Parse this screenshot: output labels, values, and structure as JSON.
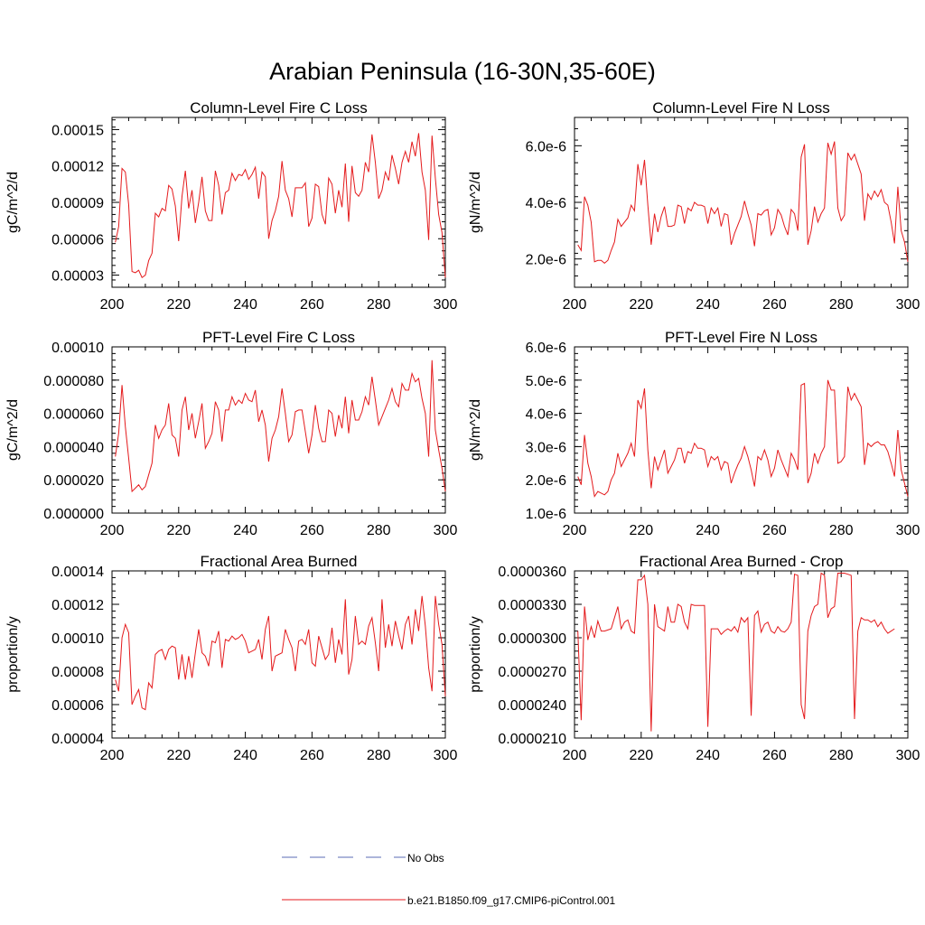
{
  "figure": {
    "title": "Arabian Peninsula (16-30N,35-60E)",
    "line_color": "#e41a1c",
    "obs_color": "#5b6bb5"
  },
  "legend": {
    "obs_label": "No Obs",
    "model_label": "b.e21.B1850.f09_g17.CMIP6-piControl.001"
  },
  "chart_data": [
    {
      "type": "line",
      "title": "Column-Level Fire C Loss",
      "ylabel": "gC/m^2/d",
      "xlim": [
        200,
        300
      ],
      "ylim": [
        2e-05,
        0.00016
      ],
      "xticks": [
        "200",
        "220",
        "240",
        "260",
        "280",
        "300"
      ],
      "yticks": [
        {
          "v": 3e-05,
          "label": "0.00003"
        },
        {
          "v": 6e-05,
          "label": "0.00006"
        },
        {
          "v": 9e-05,
          "label": "0.00009"
        },
        {
          "v": 0.00012,
          "label": "0.00012"
        },
        {
          "v": 0.00015,
          "label": "0.00015"
        }
      ],
      "x_start": 201,
      "values": [
        5.7e-05,
        7e-05,
        0.000118,
        0.000115,
        8.8e-05,
        3.3e-05,
        3.2e-05,
        3.4e-05,
        2.8e-05,
        3e-05,
        4.2e-05,
        4.8e-05,
        8.1e-05,
        7.8e-05,
        8.5e-05,
        8.3e-05,
        0.000104,
        0.000101,
        8.7e-05,
        5.8e-05,
        9.5e-05,
        0.000116,
        8.5e-05,
        0.0001,
        7.3e-05,
        9e-05,
        0.000111,
        8.3e-05,
        7.5e-05,
        7.5e-05,
        0.000116,
        0.000104,
        8e-05,
        9.8e-05,
        0.0001,
        0.000114,
        0.000108,
        0.000113,
        0.000112,
        0.000117,
        0.000109,
        0.000113,
        0.000119,
        9.3e-05,
        0.000115,
        0.000111,
        6e-05,
        7.5e-05,
        8.3e-05,
        9.5e-05,
        0.000124,
        0.0001,
        9.3e-05,
        7.8e-05,
        0.000102,
        0.000102,
        0.000102,
        0.000106,
        7e-05,
        7.7e-05,
        0.000105,
        0.000103,
        8e-05,
        7.2e-05,
        0.00011,
        0.000105,
        8.1e-05,
        0.0001,
        8.6e-05,
        0.000122,
        7.4e-05,
        0.00012,
        9.8e-05,
        9.5e-05,
        0.0001,
        0.000123,
        0.000115,
        0.000146,
        0.000123,
        9.3e-05,
        0.0001,
        0.000115,
        0.000108,
        0.000129,
        0.000118,
        0.000105,
        0.000123,
        0.000132,
        0.000123,
        0.00014,
        0.000128,
        0.000147,
        0.000115,
        0.0001,
        5.9e-05,
        0.000145,
        0.00011,
        8e-05,
        6.5e-05,
        2.8e-05
      ]
    },
    {
      "type": "line",
      "title": "Column-Level Fire N Loss",
      "ylabel": "gN/m^2/d",
      "xlim": [
        200,
        300
      ],
      "ylim": [
        1e-06,
        7e-06
      ],
      "xticks": [
        "200",
        "220",
        "240",
        "260",
        "280",
        "300"
      ],
      "yticks": [
        {
          "v": 2e-06,
          "label": "2.0e-6"
        },
        {
          "v": 4e-06,
          "label": "4.0e-6"
        },
        {
          "v": 6e-06,
          "label": "6.0e-6"
        }
      ],
      "x_start": 201,
      "values": [
        2.5e-06,
        2.3e-06,
        4.2e-06,
        3.9e-06,
        3.3e-06,
        1.9e-06,
        1.95e-06,
        1.95e-06,
        1.85e-06,
        1.95e-06,
        2.3e-06,
        2.6e-06,
        3.4e-06,
        3.15e-06,
        3.3e-06,
        3.45e-06,
        3.9e-06,
        3.7e-06,
        5.35e-06,
        4.6e-06,
        5.5e-06,
        3.9e-06,
        2.5e-06,
        3.6e-06,
        2.95e-06,
        3.5e-06,
        3.85e-06,
        3.15e-06,
        3.15e-06,
        3.2e-06,
        3.9e-06,
        3.85e-06,
        3.25e-06,
        3.8e-06,
        3.7e-06,
        4e-06,
        3.9e-06,
        3.9e-06,
        3.85e-06,
        3.25e-06,
        3.8e-06,
        3.6e-06,
        3.8e-06,
        3.15e-06,
        3.6e-06,
        3.55e-06,
        2.5e-06,
        2.9e-06,
        3.2e-06,
        3.5e-06,
        4.05e-06,
        3.6e-06,
        3.2e-06,
        2.45e-06,
        3.6e-06,
        3.55e-06,
        3.7e-06,
        3.75e-06,
        2.85e-06,
        3.1e-06,
        3.75e-06,
        3.55e-06,
        3.15e-06,
        2.85e-06,
        3.75e-06,
        3.6e-06,
        3e-06,
        5.6e-06,
        6.05e-06,
        2.5e-06,
        3e-06,
        3.85e-06,
        3.3e-06,
        3.6e-06,
        3.8e-06,
        6.1e-06,
        5.7e-06,
        6.15e-06,
        3.8e-06,
        3.35e-06,
        3.55e-06,
        5.75e-06,
        5.5e-06,
        5.7e-06,
        5.35e-06,
        5e-06,
        3.35e-06,
        4.3e-06,
        4.1e-06,
        4.4e-06,
        4.2e-06,
        4.45e-06,
        4e-06,
        3.9e-06,
        3.3e-06,
        2.55e-06,
        4.55e-06,
        3e-06,
        2.6e-06,
        1.9e-06
      ]
    },
    {
      "type": "line",
      "title": "PFT-Level Fire C Loss",
      "ylabel": "gC/m^2/d",
      "xlim": [
        200,
        300
      ],
      "ylim": [
        0,
        0.0001
      ],
      "xticks": [
        "200",
        "220",
        "240",
        "260",
        "280",
        "300"
      ],
      "yticks": [
        {
          "v": 0,
          "label": "0.000000"
        },
        {
          "v": 2e-05,
          "label": "0.000020"
        },
        {
          "v": 4e-05,
          "label": "0.000040"
        },
        {
          "v": 6e-05,
          "label": "0.000060"
        },
        {
          "v": 8e-05,
          "label": "0.000080"
        },
        {
          "v": 0.0001,
          "label": "0.00010"
        }
      ],
      "x_start": 201,
      "values": [
        3.4e-05,
        4.8e-05,
        7.7e-05,
        5.2e-05,
        3.3e-05,
        1.3e-05,
        1.5e-05,
        1.7e-05,
        1.4e-05,
        1.6e-05,
        2.3e-05,
        3e-05,
        5.3e-05,
        4.5e-05,
        5e-05,
        5.3e-05,
        6.6e-05,
        4.7e-05,
        4.5e-05,
        3.4e-05,
        6.2e-05,
        7e-05,
        5e-05,
        6e-05,
        4.5e-05,
        5.5e-05,
        6.6e-05,
        3.9e-05,
        4.3e-05,
        4.8e-05,
        6.7e-05,
        6.2e-05,
        4.3e-05,
        6.2e-05,
        6.2e-05,
        7e-05,
        6.5e-05,
        6.8e-05,
        6.6e-05,
        7.2e-05,
        6.8e-05,
        6.7e-05,
        7.4e-05,
        5.5e-05,
        6.2e-05,
        5.3e-05,
        3.1e-05,
        4.5e-05,
        5e-05,
        5.8e-05,
        7.5e-05,
        6e-05,
        4.3e-05,
        4.7e-05,
        6.1e-05,
        6.2e-05,
        6.2e-05,
        4.9e-05,
        3.6e-05,
        4.7e-05,
        6.5e-05,
        5.1e-05,
        4.3e-05,
        4.3e-05,
        6.2e-05,
        6e-05,
        4.6e-05,
        5.9e-05,
        5.1e-05,
        7e-05,
        4.8e-05,
        6.8e-05,
        5.6e-05,
        5.6e-05,
        6.1e-05,
        7e-05,
        6.5e-05,
        8.2e-05,
        6.8e-05,
        5.3e-05,
        5.8e-05,
        6.3e-05,
        6.8e-05,
        7.5e-05,
        6.7e-05,
        6.4e-05,
        7.8e-05,
        7.4e-05,
        7.4e-05,
        8.4e-05,
        7.9e-05,
        8.1e-05,
        6.9e-05,
        6e-05,
        3.4e-05,
        9.2e-05,
        5e-05,
        3.8e-05,
        2.7e-05,
        1.3e-05
      ]
    },
    {
      "type": "line",
      "title": "PFT-Level Fire N Loss",
      "ylabel": "gN/m^2/d",
      "xlim": [
        200,
        300
      ],
      "ylim": [
        1e-06,
        6e-06
      ],
      "xticks": [
        "200",
        "220",
        "240",
        "260",
        "280",
        "300"
      ],
      "yticks": [
        {
          "v": 1e-06,
          "label": "1.0e-6"
        },
        {
          "v": 2e-06,
          "label": "2.0e-6"
        },
        {
          "v": 3e-06,
          "label": "3.0e-6"
        },
        {
          "v": 4e-06,
          "label": "4.0e-6"
        },
        {
          "v": 5e-06,
          "label": "5.0e-6"
        },
        {
          "v": 6e-06,
          "label": "6.0e-6"
        }
      ],
      "x_start": 201,
      "values": [
        2.1e-06,
        1.85e-06,
        3.35e-06,
        2.5e-06,
        2.1e-06,
        1.5e-06,
        1.65e-06,
        1.6e-06,
        1.55e-06,
        1.65e-06,
        2e-06,
        2.2e-06,
        2.8e-06,
        2.4e-06,
        2.6e-06,
        2.8e-06,
        3.1e-06,
        2.7e-06,
        4.4e-06,
        4.15e-06,
        4.75e-06,
        2.9e-06,
        1.75e-06,
        2.7e-06,
        2.3e-06,
        2.6e-06,
        2.9e-06,
        2.2e-06,
        2.4e-06,
        2.6e-06,
        2.95e-06,
        2.95e-06,
        2.5e-06,
        2.85e-06,
        2.8e-06,
        3.1e-06,
        2.95e-06,
        2.95e-06,
        2.9e-06,
        2.4e-06,
        2.7e-06,
        2.6e-06,
        2.7e-06,
        2.3e-06,
        2.55e-06,
        2.5e-06,
        1.9e-06,
        2.2e-06,
        2.45e-06,
        2.65e-06,
        3e-06,
        2.7e-06,
        2.3e-06,
        1.8e-06,
        2.7e-06,
        2.6e-06,
        2.9e-06,
        2.6e-06,
        2.1e-06,
        2.35e-06,
        2.9e-06,
        2.6e-06,
        2.35e-06,
        2.1e-06,
        2.8e-06,
        2.6e-06,
        2.3e-06,
        4.85e-06,
        4.9e-06,
        1.9e-06,
        2.2e-06,
        2.8e-06,
        2.5e-06,
        2.8e-06,
        3e-06,
        5e-06,
        4.7e-06,
        4.7e-06,
        2.5e-06,
        2.55e-06,
        2.7e-06,
        4.8e-06,
        4.4e-06,
        4.6e-06,
        4.4e-06,
        4.2e-06,
        2.45e-06,
        3.1e-06,
        3e-06,
        3.1e-06,
        3.15e-06,
        3.05e-06,
        3.05e-06,
        2.85e-06,
        2.5e-06,
        2.1e-06,
        3.5e-06,
        2.3e-06,
        1.9e-06,
        1.5e-06
      ]
    },
    {
      "type": "line",
      "title": "Fractional Area Burned",
      "ylabel": "proportion/y",
      "xlim": [
        200,
        300
      ],
      "ylim": [
        4e-05,
        0.00014
      ],
      "xticks": [
        "200",
        "220",
        "240",
        "260",
        "280",
        "300"
      ],
      "yticks": [
        {
          "v": 4e-05,
          "label": "0.00004"
        },
        {
          "v": 6e-05,
          "label": "0.00006"
        },
        {
          "v": 8e-05,
          "label": "0.00008"
        },
        {
          "v": 0.0001,
          "label": "0.00010"
        },
        {
          "v": 0.00012,
          "label": "0.00012"
        },
        {
          "v": 0.00014,
          "label": "0.00014"
        }
      ],
      "x_start": 201,
      "values": [
        7.5e-05,
        6.8e-05,
        0.0001,
        0.000108,
        0.000103,
        6e-05,
        6.5e-05,
        6.9e-05,
        5.8e-05,
        5.7e-05,
        7.3e-05,
        7e-05,
        9e-05,
        9.2e-05,
        9.3e-05,
        8.7e-05,
        9.3e-05,
        9.5e-05,
        9.4e-05,
        7.5e-05,
        9e-05,
        7.5e-05,
        8.9e-05,
        7.6e-05,
        9.1e-05,
        0.000105,
        9.1e-05,
        8.9e-05,
        8.3e-05,
        9.8e-05,
        9.7e-05,
        0.000104,
        8.2e-05,
        9.9e-05,
        9.8e-05,
        0.000101,
        9.9e-05,
        0.0001,
        0.000102,
        9.8e-05,
        9.1e-05,
        9.2e-05,
        9.3e-05,
        9.9e-05,
        8.7e-05,
        0.000105,
        0.000113,
        8e-05,
        8.9e-05,
        9e-05,
        9.1e-05,
        0.000105,
        9.9e-05,
        9.4e-05,
        8e-05,
        9.8e-05,
        9.9e-05,
        9.6e-05,
        0.000105,
        8.5e-05,
        8.3e-05,
        0.000101,
        9.4e-05,
        8.7e-05,
        9e-05,
        0.000106,
        8.5e-05,
        9.9e-05,
        9e-05,
        0.000123,
        7.8e-05,
        8.7e-05,
        0.000113,
        9.6e-05,
        9.8e-05,
        9.6e-05,
        0.000107,
        0.000112,
        9.7e-05,
        8e-05,
        0.000123,
        9.4e-05,
        0.000108,
        9.5e-05,
        0.00011,
        0.000101,
        9.3e-05,
        0.000108,
        0.000113,
        9.6e-05,
        0.000117,
        0.000104,
        0.000125,
        0.000107,
        8.2e-05,
        6.8e-05,
        0.000125,
        0.000108,
        9.6e-05,
        6.5e-05
      ]
    },
    {
      "type": "line",
      "title": "Fractional Area Burned - Crop",
      "ylabel": "proportion/y",
      "xlim": [
        200,
        300
      ],
      "ylim": [
        2.1e-05,
        3.6e-05
      ],
      "xticks": [
        "200",
        "220",
        "240",
        "260",
        "280",
        "300"
      ],
      "yticks": [
        {
          "v": 2.1e-05,
          "label": "0.0000210"
        },
        {
          "v": 2.4e-05,
          "label": "0.0000240"
        },
        {
          "v": 2.7e-05,
          "label": "0.0000270"
        },
        {
          "v": 3e-05,
          "label": "0.0000300"
        },
        {
          "v": 3.3e-05,
          "label": "0.0000330"
        },
        {
          "v": 3.6e-05,
          "label": "0.0000360"
        }
      ],
      "x_start": 201,
      "values": [
        3.06e-05,
        2.26e-05,
        3.28e-05,
        2.98e-05,
        3.1e-05,
        3e-05,
        3.15e-05,
        3.06e-05,
        3.06e-05,
        3.07e-05,
        3.08e-05,
        3.18e-05,
        3.28e-05,
        3.08e-05,
        3.14e-05,
        3.16e-05,
        3.06e-05,
        3.04e-05,
        3.52e-05,
        3.52e-05,
        3.56e-05,
        3.3e-05,
        2.16e-05,
        3.3e-05,
        3.1e-05,
        3.08e-05,
        3.06e-05,
        3.28e-05,
        3.14e-05,
        3.14e-05,
        3.3e-05,
        3.28e-05,
        3.14e-05,
        3.08e-05,
        3.3e-05,
        3.29e-05,
        3.29e-05,
        3.29e-05,
        3.29e-05,
        2.2e-05,
        3.08e-05,
        3.08e-05,
        3.08e-05,
        3.03e-05,
        3.06e-05,
        3.08e-05,
        3.06e-05,
        3.1e-05,
        3.05e-05,
        3.18e-05,
        3.14e-05,
        3.18e-05,
        2.3e-05,
        3.2e-05,
        3.24e-05,
        3.05e-05,
        3.12e-05,
        3.14e-05,
        3.06e-05,
        3.04e-05,
        3.1e-05,
        3.06e-05,
        3.05e-05,
        3.08e-05,
        3.14e-05,
        3.57e-05,
        3.56e-05,
        2.4e-05,
        2.27e-05,
        3.06e-05,
        3.2e-05,
        3.28e-05,
        3.3e-05,
        3.58e-05,
        3.56e-05,
        3.18e-05,
        3.26e-05,
        3.28e-05,
        3.58e-05,
        3.58e-05,
        3.58e-05,
        3.57e-05,
        3.56e-05,
        2.27e-05,
        3.06e-05,
        3.18e-05,
        3.16e-05,
        3.16e-05,
        3.14e-05,
        3.16e-05,
        3.1e-05,
        3.14e-05,
        3.08e-05,
        3.04e-05,
        3.06e-05,
        3.08e-05
      ]
    }
  ]
}
